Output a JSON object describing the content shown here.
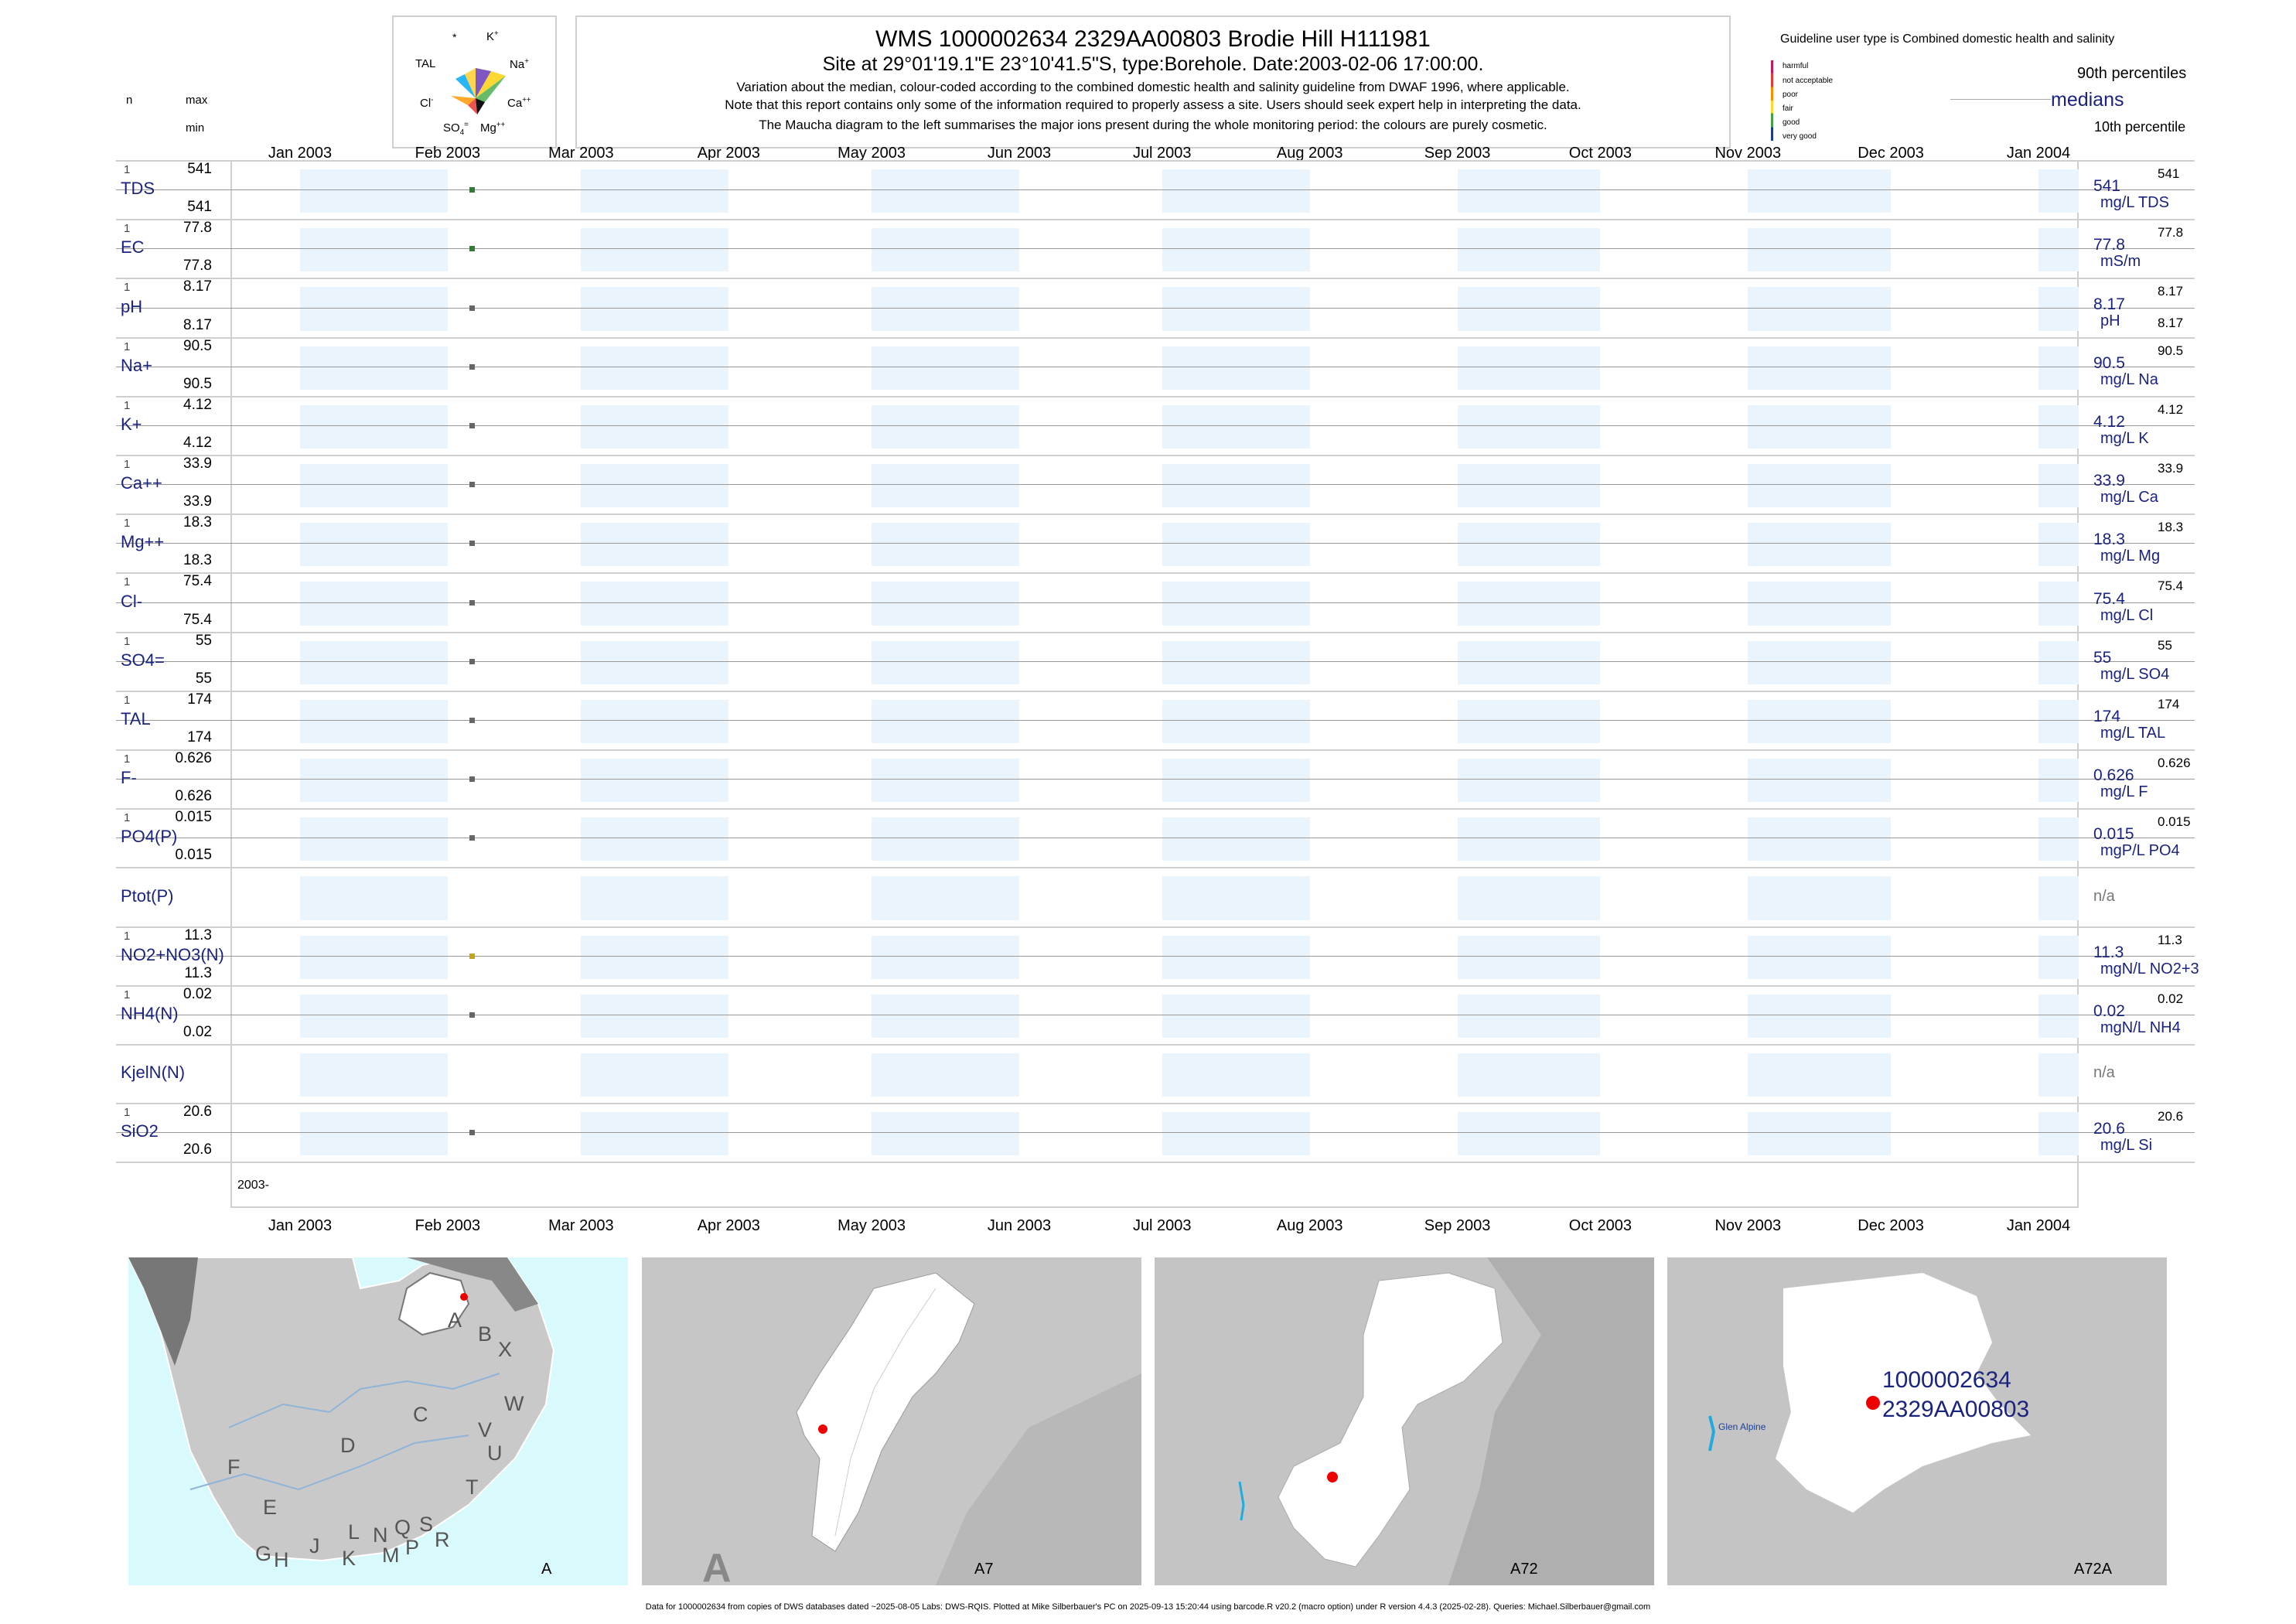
{
  "header": {
    "title": "WMS 1000002634 2329AA00803 Brodie Hill H111981",
    "subtitle": "Site at 29°01'19.1\"E 23°10'41.5\"S, type:Borehole. Date:2003-02-06 17:00:00.",
    "note1": "Variation about the median,  colour-coded according to the combined domestic health and salinity guideline from DWAF 1996, where applicable.",
    "note2": "Note that this report contains only some of the information required to properly assess a site. Users should seek expert help in interpreting the data.",
    "note3": "The Maucha diagram to the left summarises the major ions present during the whole monitoring period: the colours are purely cosmetic."
  },
  "maucha": {
    "labels": [
      "*",
      "K",
      "TAL",
      "Na",
      "Cl",
      "Ca",
      "SO",
      "Mg"
    ]
  },
  "column_heads": {
    "n": "n",
    "max": "max",
    "min": "min"
  },
  "legend": {
    "guideline_text": "Guideline user type is Combined domestic health and salinity",
    "classes": [
      {
        "label": "harmful",
        "color": "#c2185b"
      },
      {
        "label": "not acceptable",
        "color": "#e53935"
      },
      {
        "label": "poor",
        "color": "#fb8c00"
      },
      {
        "label": "fair",
        "color": "#fdd835"
      },
      {
        "label": "good",
        "color": "#43a047"
      },
      {
        "label": "very good",
        "color": "#1e3a8a"
      }
    ],
    "p90": "90th percentiles",
    "medians": "medians",
    "p10": "10th percentile"
  },
  "chart_data": {
    "type": "scatter",
    "x_axis": {
      "range": [
        "2003-01-01",
        "2004-01-01"
      ],
      "ticks": [
        "Jan 2003",
        "Feb 2003",
        "Mar 2003",
        "Apr 2003",
        "May 2003",
        "Jun 2003",
        "Jul 2003",
        "Aug 2003",
        "Sep 2003",
        "Oct 2003",
        "Nov 2003",
        "Dec 2003",
        "Jan 2004"
      ],
      "year_label": "2003-"
    },
    "sample_date": "2003-02-06",
    "rows": [
      {
        "name": "TDS",
        "n": "1",
        "max": "541",
        "min": "541",
        "median": "541",
        "unit": "mg/L TDS",
        "p90": "541",
        "p10": "",
        "value": 541,
        "color": "#2e7d32"
      },
      {
        "name": "EC",
        "n": "1",
        "max": "77.8",
        "min": "77.8",
        "median": "77.8",
        "unit": "mS/m",
        "p90": "77.8",
        "p10": "",
        "value": 77.8,
        "color": "#2e7d32"
      },
      {
        "name": "pH",
        "n": "1",
        "max": "8.17",
        "min": "8.17",
        "median": "8.17",
        "unit": "pH",
        "p90": "8.17",
        "p10": "8.17",
        "value": 8.17,
        "color": "#666666"
      },
      {
        "name": "Na+",
        "n": "1",
        "max": "90.5",
        "min": "90.5",
        "median": "90.5",
        "unit": "mg/L Na",
        "p90": "90.5",
        "p10": "",
        "value": 90.5,
        "color": "#666666"
      },
      {
        "name": "K+",
        "n": "1",
        "max": "4.12",
        "min": "4.12",
        "median": "4.12",
        "unit": "mg/L K",
        "p90": "4.12",
        "p10": "",
        "value": 4.12,
        "color": "#666666"
      },
      {
        "name": "Ca++",
        "n": "1",
        "max": "33.9",
        "min": "33.9",
        "median": "33.9",
        "unit": "mg/L Ca",
        "p90": "33.9",
        "p10": "",
        "value": 33.9,
        "color": "#666666"
      },
      {
        "name": "Mg++",
        "n": "1",
        "max": "18.3",
        "min": "18.3",
        "median": "18.3",
        "unit": "mg/L Mg",
        "p90": "18.3",
        "p10": "",
        "value": 18.3,
        "color": "#666666"
      },
      {
        "name": "Cl-",
        "n": "1",
        "max": "75.4",
        "min": "75.4",
        "median": "75.4",
        "unit": "mg/L Cl",
        "p90": "75.4",
        "p10": "",
        "value": 75.4,
        "color": "#666666"
      },
      {
        "name": "SO4=",
        "n": "1",
        "max": "55",
        "min": "55",
        "median": "55",
        "unit": "mg/L SO4",
        "p90": "55",
        "p10": "",
        "value": 55,
        "color": "#666666"
      },
      {
        "name": "TAL",
        "n": "1",
        "max": "174",
        "min": "174",
        "median": "174",
        "unit": "mg/L TAL",
        "p90": "174",
        "p10": "",
        "value": 174,
        "color": "#666666"
      },
      {
        "name": "F-",
        "n": "1",
        "max": "0.626",
        "min": "0.626",
        "median": "0.626",
        "unit": "mg/L F",
        "p90": "0.626",
        "p10": "",
        "value": 0.626,
        "color": "#666666"
      },
      {
        "name": "PO4(P)",
        "n": "1",
        "max": "0.015",
        "min": "0.015",
        "median": "0.015",
        "unit": "mgP/L PO4",
        "p90": "0.015",
        "p10": "",
        "value": 0.015,
        "color": "#666666"
      },
      {
        "name": "Ptot(P)",
        "n": "",
        "max": "",
        "min": "",
        "median": "n/a",
        "unit": "",
        "p90": "",
        "p10": "",
        "value": null,
        "color": ""
      },
      {
        "name": "NO2+NO3(N)",
        "n": "1",
        "max": "11.3",
        "min": "11.3",
        "median": "11.3",
        "unit": "mgN/L NO2+3",
        "p90": "11.3",
        "p10": "",
        "value": 11.3,
        "color": "#c8a415"
      },
      {
        "name": "NH4(N)",
        "n": "1",
        "max": "0.02",
        "min": "0.02",
        "median": "0.02",
        "unit": "mgN/L NH4",
        "p90": "0.02",
        "p10": "",
        "value": 0.02,
        "color": "#666666"
      },
      {
        "name": "KjelN(N)",
        "n": "",
        "max": "",
        "min": "",
        "median": "n/a",
        "unit": "",
        "p90": "",
        "p10": "",
        "value": null,
        "color": ""
      },
      {
        "name": "SiO2",
        "n": "1",
        "max": "20.6",
        "min": "20.6",
        "median": "20.6",
        "unit": "mg/L Si",
        "p90": "20.6",
        "p10": "",
        "value": 20.6,
        "color": "#666666"
      }
    ]
  },
  "maps": [
    {
      "label": "A",
      "letters": [
        "A",
        "B",
        "X",
        "C",
        "W",
        "V",
        "U",
        "D",
        "T",
        "F",
        "E",
        "L",
        "N",
        "Q",
        "S",
        "R",
        "G",
        "H",
        "J",
        "K",
        "M",
        "P"
      ]
    },
    {
      "label": "A7",
      "big": "A"
    },
    {
      "label": "A72"
    },
    {
      "label": "A72A",
      "site_id": "1000002634",
      "site_code": "2329AA00803",
      "town": "Glen Alpine"
    }
  ],
  "footer": "Data for 1000002634 from copies of DWS databases dated ~2025-08-05 Labs: DWS-RQIS. Plotted at Mike Silberbauer's PC on 2025-09-13 15:20:44 using barcode.R v20.2 (macro option) under R version 4.4.3 (2025-02-28). Queries: Michael.Silberbauer@gmail.com"
}
